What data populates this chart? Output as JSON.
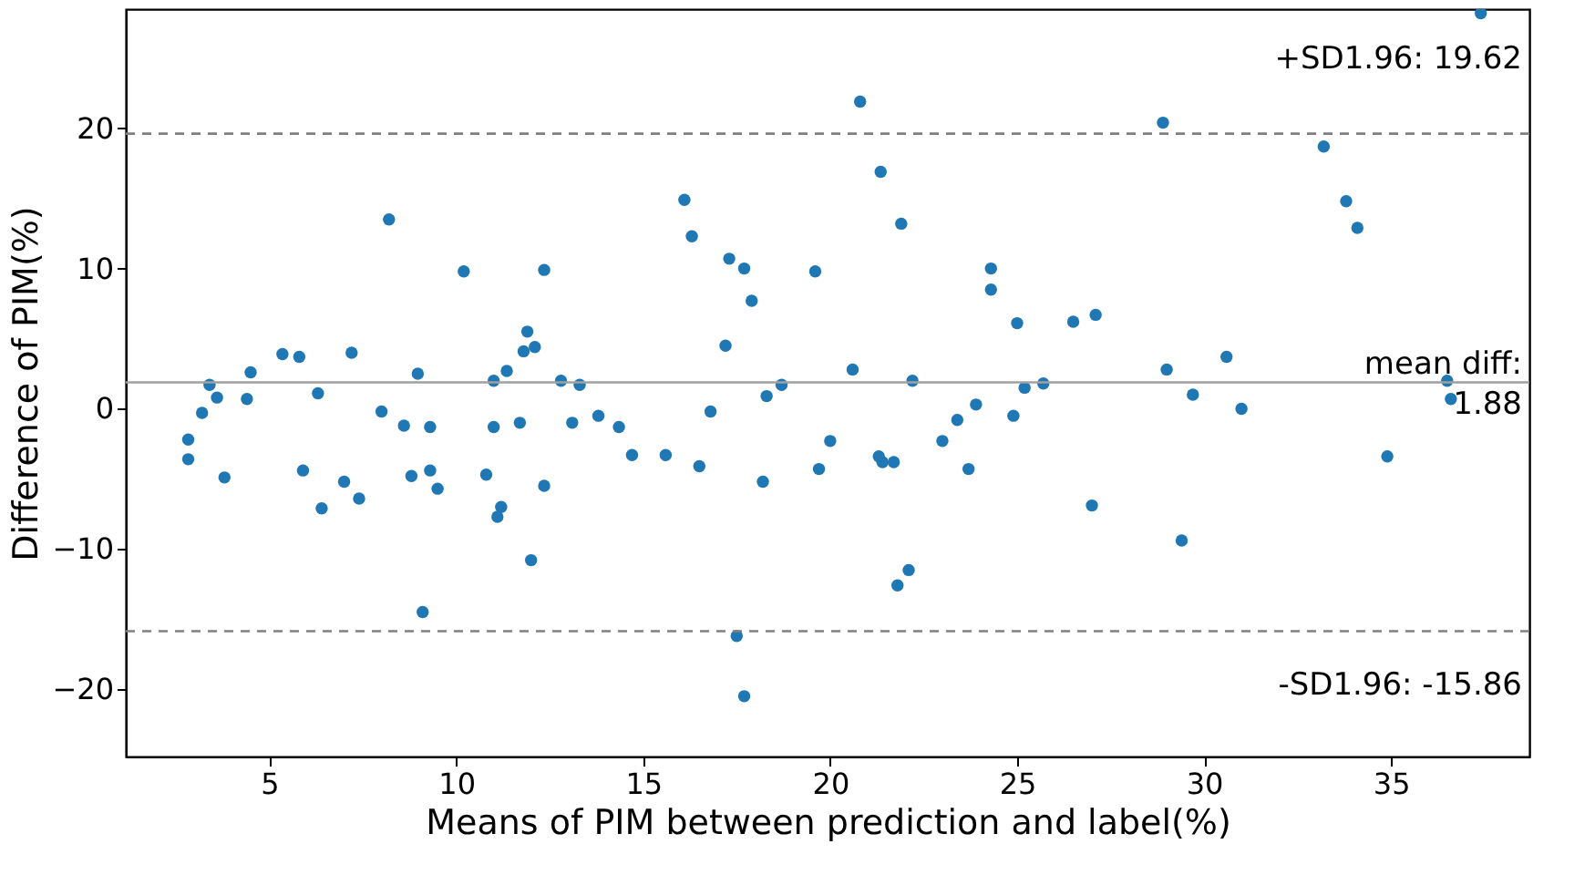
{
  "chart_data": {
    "type": "scatter",
    "xlabel": "Means of PIM between prediction and label(%)",
    "ylabel": "Difference of PIM(%)",
    "xlim": [
      1.16,
      38.7
    ],
    "ylim": [
      -24.8,
      28.5
    ],
    "xticks": [
      5,
      10,
      15,
      20,
      25,
      30,
      35
    ],
    "yticks": [
      -20,
      -10,
      0,
      10,
      20
    ],
    "grid": false,
    "marker": "circle",
    "series": [
      {
        "color": "#1f77b4",
        "x": [
          2.83,
          2.83,
          3.2,
          3.4,
          3.6,
          3.8,
          4.4,
          4.5,
          5.35,
          5.8,
          5.9,
          6.3,
          6.4,
          7.0,
          7.2,
          7.4,
          8.0,
          8.2,
          8.6,
          8.8,
          8.97,
          9.1,
          9.3,
          9.3,
          9.5,
          10.2,
          10.8,
          11.0,
          11.0,
          11.1,
          11.2,
          11.35,
          11.7,
          11.8,
          11.9,
          12.0,
          12.1,
          12.35,
          12.35,
          12.8,
          13.1,
          13.3,
          13.8,
          14.35,
          14.7,
          15.6,
          16.1,
          16.3,
          16.5,
          16.8,
          17.2,
          17.3,
          17.5,
          17.7,
          17.7,
          17.9,
          18.2,
          18.3,
          18.7,
          19.6,
          19.7,
          20.0,
          20.6,
          20.8,
          21.3,
          21.35,
          21.4,
          21.7,
          21.8,
          21.9,
          22.1,
          22.2,
          23.0,
          23.4,
          23.7,
          23.9,
          24.3,
          24.3,
          24.9,
          25.0,
          25.2,
          25.7,
          26.5,
          27.0,
          27.1,
          28.9,
          29.0,
          29.4,
          29.7,
          30.6,
          31.0,
          33.2,
          33.8,
          34.1,
          34.9,
          36.5,
          36.6,
          37.4
        ],
        "values": [
          -2.2,
          -3.6,
          -0.3,
          1.7,
          0.8,
          -4.9,
          0.7,
          2.6,
          3.9,
          3.7,
          -4.4,
          1.1,
          -7.1,
          -5.2,
          4.0,
          -6.4,
          -0.2,
          13.5,
          -1.2,
          -4.8,
          2.5,
          -14.5,
          -4.4,
          -1.3,
          -5.7,
          9.8,
          -4.7,
          -1.3,
          2.0,
          -7.7,
          -7.0,
          2.7,
          -1.0,
          4.1,
          5.5,
          -10.8,
          4.4,
          9.9,
          -5.5,
          2.0,
          -1.0,
          1.7,
          -0.5,
          -1.3,
          -3.3,
          -3.3,
          14.9,
          12.3,
          -4.1,
          -0.2,
          4.5,
          10.7,
          -16.2,
          10.0,
          -20.5,
          7.7,
          -5.2,
          0.9,
          1.7,
          9.8,
          -4.3,
          -2.3,
          2.8,
          21.9,
          -3.4,
          16.9,
          -3.8,
          -3.8,
          -12.6,
          13.2,
          -11.5,
          2.0,
          -2.3,
          -0.8,
          -4.3,
          0.3,
          8.5,
          10.0,
          -0.5,
          6.1,
          1.5,
          1.8,
          6.2,
          -6.9,
          6.7,
          20.4,
          2.8,
          -9.4,
          1.0,
          3.7,
          0.0,
          18.7,
          14.8,
          12.9,
          -3.4,
          2.0,
          0.7,
          28.2
        ]
      }
    ],
    "ref_lines": [
      {
        "axis": "y",
        "value": 19.62,
        "label": "+SD1.96: 19.62",
        "color": "#808080",
        "line_style": "dashed"
      },
      {
        "axis": "y",
        "value": 1.88,
        "label": "mean diff:\n1.88",
        "color": "#a0a0a0",
        "line_style": "solid"
      },
      {
        "axis": "y",
        "value": -15.86,
        "label": "-SD1.96: -15.86",
        "color": "#808080",
        "line_style": "dashed"
      }
    ]
  }
}
